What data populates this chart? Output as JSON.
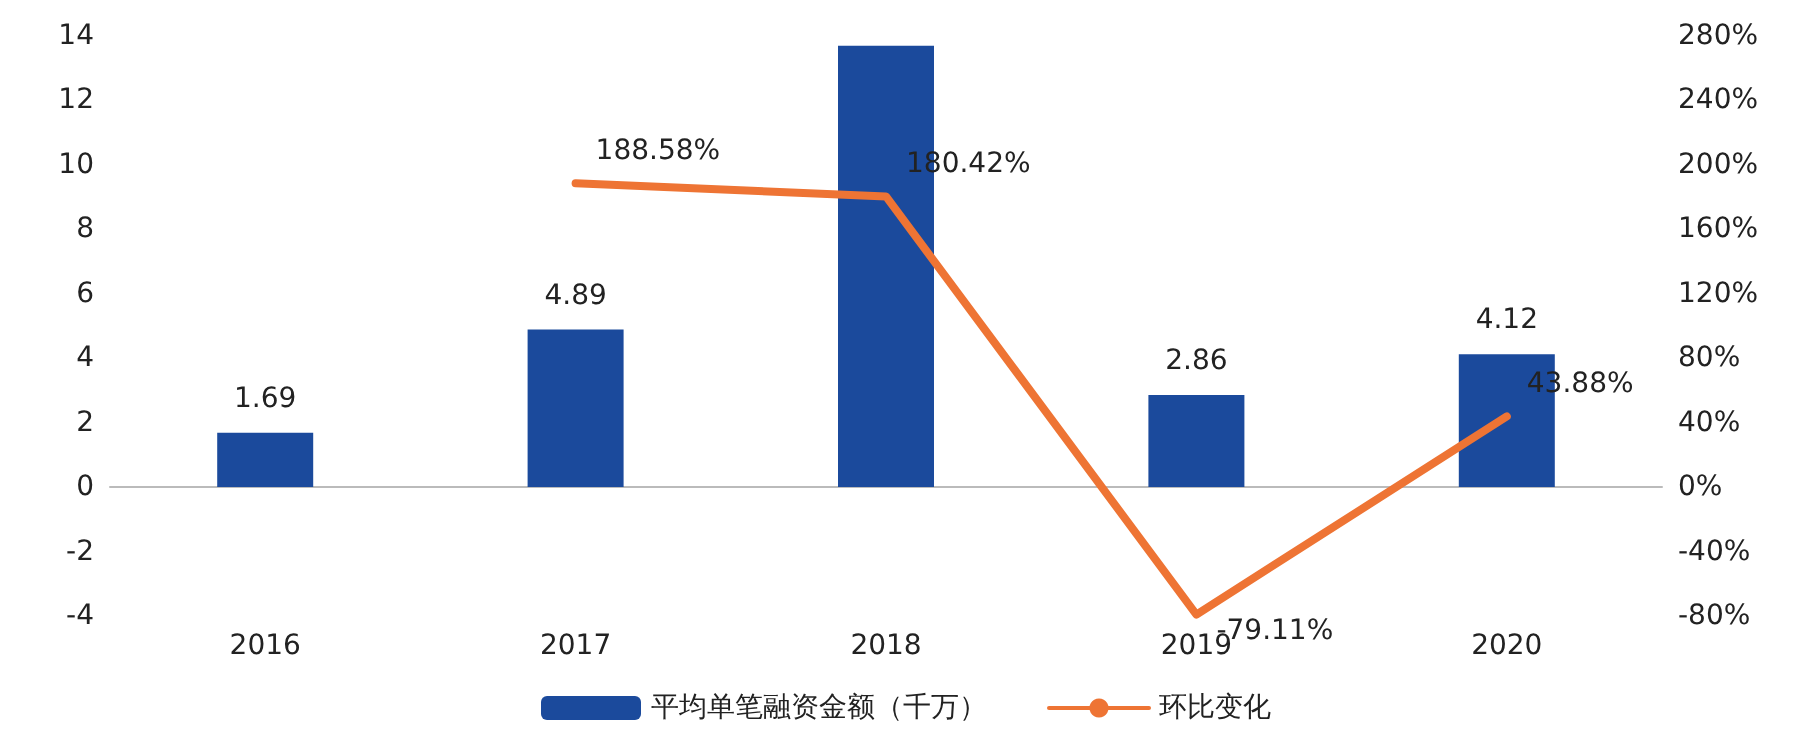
{
  "chart_data": {
    "type": "bar",
    "categories": [
      "2016",
      "2017",
      "2018",
      "2019",
      "2020"
    ],
    "series": [
      {
        "name": "平均单笔融资金额（千万）",
        "color": "#1b4a9c",
        "values": [
          1.69,
          4.89,
          13.7,
          2.86,
          4.12
        ],
        "value_labels": [
          "1.69",
          "4.89",
          null,
          "2.86",
          "4.12"
        ]
      },
      {
        "name": "环比变化",
        "type": "line",
        "axis": "y2",
        "color": "#ee7434",
        "values": [
          null,
          188.58,
          180.42,
          -79.11,
          43.88
        ],
        "value_labels": [
          null,
          "188.58%",
          "180.42%",
          "-79.11%",
          "43.88%"
        ]
      }
    ],
    "ylim": [
      -4,
      14
    ],
    "yticks": [
      -4,
      -2,
      0,
      2,
      4,
      6,
      8,
      10,
      12,
      14
    ],
    "y2lim": [
      -80,
      280
    ],
    "y2ticks": [
      {
        "value": -80,
        "label": "-80%"
      },
      {
        "value": -40,
        "label": "-40%"
      },
      {
        "value": 0,
        "label": "0%"
      },
      {
        "value": 40,
        "label": "40%"
      },
      {
        "value": 80,
        "label": "80%"
      },
      {
        "value": 120,
        "label": "120%"
      },
      {
        "value": 160,
        "label": "160%"
      },
      {
        "value": 200,
        "label": "200%"
      },
      {
        "value": 240,
        "label": "240%"
      },
      {
        "value": 280,
        "label": "280%"
      }
    ],
    "legend": "bottom",
    "marker": "none",
    "line_style": "solid"
  }
}
